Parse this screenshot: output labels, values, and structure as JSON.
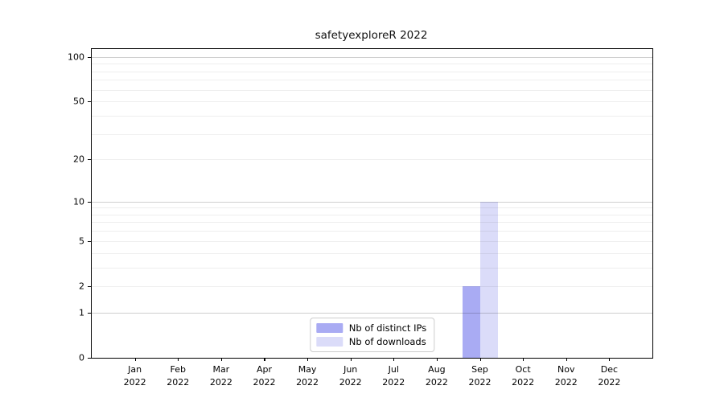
{
  "title": "safetyexploreR 2022",
  "chart_data": {
    "type": "bar",
    "title": "safetyexploreR 2022",
    "categories": [
      "Jan 2022",
      "Feb 2022",
      "Mar 2022",
      "Apr 2022",
      "May 2022",
      "Jun 2022",
      "Jul 2022",
      "Aug 2022",
      "Sep 2022",
      "Oct 2022",
      "Nov 2022",
      "Dec 2022"
    ],
    "series": [
      {
        "name": "Nb of distinct IPs",
        "color": "#a9abf3",
        "values": [
          0,
          0,
          0,
          0,
          0,
          0,
          0,
          0,
          2,
          0,
          0,
          0
        ]
      },
      {
        "name": "Nb of downloads",
        "color": "#dbdcf9",
        "values": [
          0,
          0,
          0,
          0,
          0,
          0,
          0,
          0,
          10,
          0,
          0,
          0
        ]
      }
    ],
    "xlabel": "",
    "ylabel": "",
    "yscale": "log1p",
    "ylim": [
      0,
      113
    ],
    "yticks": [
      0,
      1,
      2,
      5,
      10,
      20,
      50,
      100
    ],
    "grid_major": [
      1,
      10,
      100
    ],
    "grid_minor": [
      2,
      3,
      4,
      5,
      6,
      7,
      8,
      9,
      20,
      30,
      40,
      50,
      60,
      70,
      80,
      90
    ],
    "grid": true,
    "legend_position": "lower center",
    "background": "#ffffff"
  }
}
